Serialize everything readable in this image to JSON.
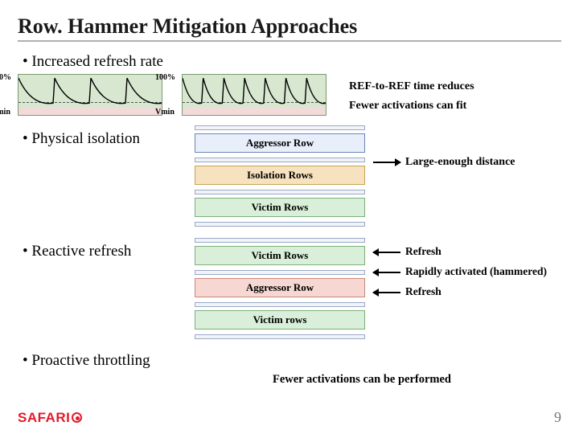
{
  "title": "Row. Hammer Mitigation Approaches",
  "bullets": {
    "refresh": "Increased refresh rate",
    "isolation": "Physical isolation",
    "reactive": "Reactive refresh",
    "proactive": "Proactive throttling"
  },
  "refresh_charts": {
    "y_top": "100%",
    "y_bottom": "Vmin",
    "chart_bg": "#d8e8d0",
    "chart_border": "#7a9a70",
    "curve_color": "#000000",
    "vmin_band_color": "#f2dada",
    "curve_width": 1.4,
    "left": {
      "pulses": 4
    },
    "right": {
      "pulses": 7
    },
    "notes": {
      "line1": "REF-to-REF time reduces",
      "line2": "Fewer activations can fit"
    }
  },
  "isolation": {
    "rows": [
      {
        "label": "Aggressor Row",
        "bg": "#e8effa",
        "border": "#6a86b8"
      },
      {
        "label": "Isolation Rows",
        "bg": "#f7e2bf",
        "border": "#c8a356"
      },
      {
        "label": "Victim Rows",
        "bg": "#d9efd9",
        "border": "#7cb07c"
      }
    ],
    "thinbar_border": "#9aa9c6",
    "annotation": "Large-enough distance"
  },
  "reactive": {
    "rows": [
      {
        "label": "Victim Rows",
        "bg": "#d9efd9",
        "border": "#7cb07c",
        "note": "Refresh"
      },
      {
        "label": "Aggressor Row",
        "bg": "#f6d7d2",
        "border": "#cc887d",
        "note": "Rapidly activated (hammered)"
      },
      {
        "label": "Victim rows",
        "bg": "#d9efd9",
        "border": "#7cb07c",
        "note": "Refresh"
      }
    ]
  },
  "proactive": {
    "note": "Fewer activations can be performed"
  },
  "footer": {
    "logo": "SAFARI",
    "page": "9",
    "logo_color": "#e5192a",
    "page_color": "#777777"
  }
}
